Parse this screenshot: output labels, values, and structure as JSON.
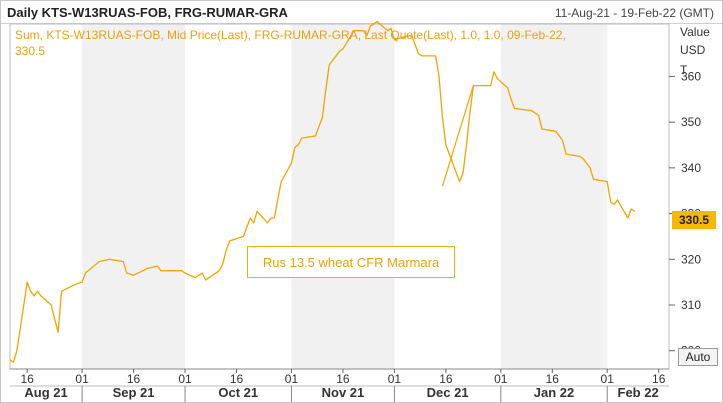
{
  "header": {
    "title": "Daily KTS-W13RUAS-FOB, FRG-RUMAR-GRA",
    "date_range": "11-Aug-21 - 19-Feb-22 (GMT)"
  },
  "info_text": "Sum, KTS-W13RUAS-FOB, Mid Price(Last), FRG-RUMAR-GRA, Last Quote(Last),  1.0, 1.0, 09-Feb-22, 330.5",
  "axis_unit": [
    "Value",
    "USD",
    "T"
  ],
  "last_value_label": "330.5",
  "auto_button": "Auto",
  "annotation": "Rus 13.5 wheat CFR Marmara",
  "colors": {
    "series": "#f0a500",
    "band": "#f1f1f1",
    "grid": "#cccccc",
    "last_bg": "#f7b900"
  },
  "chart_data": {
    "type": "line",
    "x_range": [
      "2021-08-11",
      "2022-02-19"
    ],
    "ylim": [
      296,
      366
    ],
    "yticks": [
      300,
      310,
      320,
      330,
      340,
      350,
      360
    ],
    "xtick_days": [
      {
        "date": "2021-08-16",
        "label": "16"
      },
      {
        "date": "2021-09-01",
        "label": "01"
      },
      {
        "date": "2021-09-16",
        "label": "16"
      },
      {
        "date": "2021-10-01",
        "label": "01"
      },
      {
        "date": "2021-10-16",
        "label": "16"
      },
      {
        "date": "2021-11-01",
        "label": "01"
      },
      {
        "date": "2021-11-16",
        "label": "16"
      },
      {
        "date": "2021-12-01",
        "label": "01"
      },
      {
        "date": "2021-12-16",
        "label": "16"
      },
      {
        "date": "2022-01-01",
        "label": "01"
      },
      {
        "date": "2022-01-16",
        "label": "16"
      },
      {
        "date": "2022-02-01",
        "label": "01"
      },
      {
        "date": "2022-02-16",
        "label": "16"
      }
    ],
    "months": [
      {
        "start": "2021-08-01",
        "label": "Aug 21"
      },
      {
        "start": "2021-09-01",
        "label": "Sep 21"
      },
      {
        "start": "2021-10-01",
        "label": "Oct 21"
      },
      {
        "start": "2021-11-01",
        "label": "Nov 21"
      },
      {
        "start": "2021-12-01",
        "label": "Dec 21"
      },
      {
        "start": "2022-01-01",
        "label": "Jan 22"
      },
      {
        "start": "2022-02-01",
        "label": "Feb 22"
      }
    ],
    "grid": false,
    "series": [
      {
        "points": [
          [
            "2021-08-11",
            298
          ],
          [
            "2021-08-12",
            297.5
          ],
          [
            "2021-08-13",
            300
          ],
          [
            "2021-08-16",
            315
          ],
          [
            "2021-08-17",
            313
          ],
          [
            "2021-08-18",
            312
          ],
          [
            "2021-08-19",
            313
          ],
          [
            "2021-08-20",
            312
          ],
          [
            "2021-08-23",
            310
          ],
          [
            "2021-08-24",
            307
          ],
          [
            "2021-08-25",
            304
          ],
          [
            "2021-08-26",
            313
          ],
          [
            "2021-08-30",
            314.5
          ],
          [
            "2021-09-01",
            315
          ],
          [
            "2021-09-02",
            317
          ],
          [
            "2021-09-06",
            319.5
          ],
          [
            "2021-09-09",
            320
          ],
          [
            "2021-09-13",
            319.5
          ],
          [
            "2021-09-14",
            317
          ],
          [
            "2021-09-16",
            316.5
          ],
          [
            "2021-09-20",
            318
          ],
          [
            "2021-09-23",
            318.5
          ],
          [
            "2021-09-24",
            317.5
          ],
          [
            "2021-09-30",
            317.5
          ],
          [
            "2021-10-01",
            317
          ],
          [
            "2021-10-04",
            316
          ],
          [
            "2021-10-06",
            317
          ],
          [
            "2021-10-07",
            315.5
          ],
          [
            "2021-10-08",
            316
          ],
          [
            "2021-10-11",
            317.5
          ],
          [
            "2021-10-12",
            319
          ],
          [
            "2021-10-13",
            322
          ],
          [
            "2021-10-14",
            324
          ],
          [
            "2021-10-18",
            325
          ],
          [
            "2021-10-19",
            327
          ],
          [
            "2021-10-20",
            329
          ],
          [
            "2021-10-21",
            328
          ],
          [
            "2021-10-22",
            330.5
          ],
          [
            "2021-10-25",
            328
          ],
          [
            "2021-10-26",
            329
          ],
          [
            "2021-10-27",
            329
          ],
          [
            "2021-10-28",
            333
          ],
          [
            "2021-10-29",
            337
          ],
          [
            "2021-11-01",
            341
          ],
          [
            "2021-11-02",
            344.5
          ],
          [
            "2021-11-03",
            345
          ],
          [
            "2021-11-04",
            346.5
          ],
          [
            "2021-11-08",
            347
          ],
          [
            "2021-11-09",
            349
          ],
          [
            "2021-11-10",
            351
          ],
          [
            "2021-11-11",
            357
          ],
          [
            "2021-11-12",
            362.5
          ],
          [
            "2021-11-15",
            365.5
          ],
          [
            "2021-11-16",
            366
          ],
          [
            "2021-11-18",
            368.5
          ],
          [
            "2021-11-19",
            370
          ],
          [
            "2021-11-22",
            370
          ],
          [
            "2021-11-23",
            369
          ],
          [
            "2021-11-24",
            371
          ],
          [
            "2021-11-26",
            372
          ],
          [
            "2021-11-29",
            370
          ],
          [
            "2021-11-30",
            370.5
          ],
          [
            "2021-12-01",
            368
          ],
          [
            "2021-12-03",
            368.5
          ],
          [
            "2021-12-06",
            369
          ],
          [
            "2021-12-07",
            367
          ],
          [
            "2021-12-08",
            365
          ],
          [
            "2021-12-09",
            364.5
          ],
          [
            "2021-12-13",
            364.5
          ],
          [
            "2021-12-14",
            360
          ],
          [
            "2021-12-15",
            351
          ],
          [
            "2021-12-16",
            345
          ],
          [
            "2021-12-17",
            343
          ],
          [
            "2021-12-20",
            337
          ],
          [
            "2021-12-21",
            339
          ],
          [
            "2021-12-22",
            345
          ],
          [
            "2021-12-23",
            352
          ],
          [
            "2021-12-24",
            358
          ],
          [
            "2021-12-27",
            358
          ],
          [
            "2021-12-29",
            358
          ],
          [
            "2021-12-30",
            361
          ],
          [
            "2021-12-31",
            359.5
          ],
          [
            "2022-01-03",
            357.5
          ],
          [
            "2022-01-04",
            355
          ],
          [
            "2022-01-05",
            353
          ],
          [
            "2022-01-10",
            352.5
          ],
          [
            "2022-01-11",
            352
          ],
          [
            "2022-01-12",
            351.5
          ],
          [
            "2022-01-13",
            348.5
          ],
          [
            "2022-01-17",
            348
          ],
          [
            "2022-01-18",
            347
          ],
          [
            "2022-01-19",
            346
          ],
          [
            "2022-01-20",
            343
          ],
          [
            "2022-01-24",
            342.5
          ],
          [
            "2022-01-25",
            342
          ],
          [
            "2022-01-26",
            341
          ],
          [
            "2022-01-27",
            340
          ],
          [
            "2022-01-28",
            337.5
          ],
          [
            "2022-02-01",
            337
          ],
          [
            "2022-02-02",
            332.5
          ],
          [
            "2022-02-03",
            332
          ],
          [
            "2022-02-04",
            333
          ],
          [
            "2022-02-07",
            329
          ],
          [
            "2022-02-08",
            331
          ],
          [
            "2022-02-09",
            330.5
          ]
        ]
      }
    ],
    "annotation_lines": [
      {
        "from": [
          "2021-12-15",
          336
        ],
        "to": [
          "2021-12-24",
          358
        ]
      }
    ]
  }
}
